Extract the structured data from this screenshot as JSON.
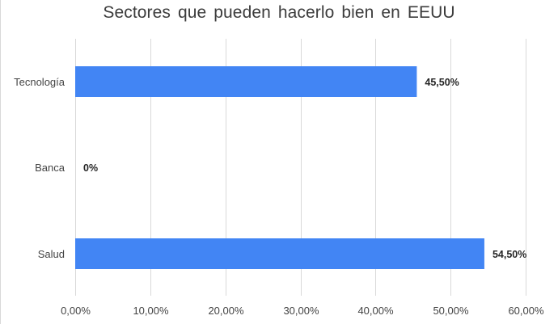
{
  "chart_data": {
    "type": "bar",
    "orientation": "horizontal",
    "title": "Sectores que pueden hacerlo bien en EEUU",
    "xlabel": "",
    "ylabel": "",
    "categories": [
      "Tecnología",
      "Banca",
      "Salud"
    ],
    "values": [
      45.5,
      0,
      54.5
    ],
    "data_labels": [
      "45,50%",
      "0%",
      "54,50%"
    ],
    "xlim": [
      0,
      60
    ],
    "x_ticks": [
      0,
      10,
      20,
      30,
      40,
      50,
      60
    ],
    "x_tick_labels": [
      "0,00%",
      "10,00%",
      "20,00%",
      "30,00%",
      "40,00%",
      "50,00%",
      "60,00%"
    ],
    "grid": true,
    "legend": "none",
    "colors": {
      "bar": "#4285f4",
      "grid": "#d9d9d9",
      "text": "#444444",
      "title": "#3c3c3c",
      "data_label": "#262626"
    }
  }
}
